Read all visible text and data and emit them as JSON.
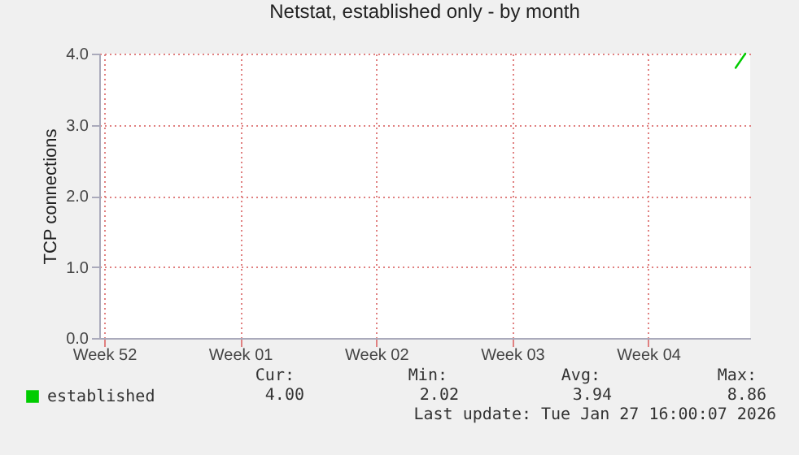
{
  "chart_data": {
    "type": "line",
    "title": "Netstat, established only - by month",
    "ylabel": "TCP connections",
    "categories": [
      "Week 52",
      null,
      null,
      null,
      null,
      null,
      null,
      null,
      null,
      null,
      null,
      null,
      null,
      null,
      "Week 01",
      null,
      null,
      null,
      null,
      null,
      null,
      null,
      null,
      null,
      null,
      null,
      null,
      null,
      "Week 02",
      null,
      null,
      null,
      null,
      null,
      null,
      null,
      null,
      null,
      null,
      null,
      null,
      null,
      "Week 03",
      null,
      null,
      null,
      null,
      null,
      null,
      null,
      null,
      null,
      null,
      null,
      null,
      null,
      "Week 04",
      null,
      null,
      null,
      null,
      null,
      null,
      null,
      null,
      null,
      null
    ],
    "series": [
      {
        "name": "established",
        "color": "#00cc00",
        "values": [
          null,
          null,
          null,
          null,
          null,
          null,
          null,
          null,
          null,
          null,
          null,
          null,
          null,
          null,
          null,
          null,
          null,
          null,
          null,
          null,
          null,
          null,
          null,
          null,
          null,
          null,
          null,
          null,
          null,
          null,
          null,
          null,
          null,
          null,
          null,
          null,
          null,
          null,
          null,
          null,
          null,
          null,
          null,
          null,
          null,
          null,
          null,
          null,
          null,
          null,
          null,
          null,
          null,
          null,
          null,
          null,
          null,
          null,
          null,
          null,
          null,
          null,
          null,
          null,
          null,
          3.8,
          4.0
        ]
      }
    ],
    "ylim": [
      0,
      4
    ],
    "yticks": [
      {
        "value": 0,
        "label": "0.0"
      },
      {
        "value": 1,
        "label": "1.0"
      },
      {
        "value": 2,
        "label": "2.0"
      },
      {
        "value": 3,
        "label": "3.0"
      },
      {
        "value": 4,
        "label": "4.0"
      }
    ],
    "grid": true,
    "legend": "bottom left",
    "annotations": [
      "Cur:",
      "Min:",
      "Avg:",
      "Max:",
      "4.00",
      "2.02",
      "3.94",
      "8.86",
      "Last update: Tue Jan 27 16:00:07 2026"
    ]
  }
}
